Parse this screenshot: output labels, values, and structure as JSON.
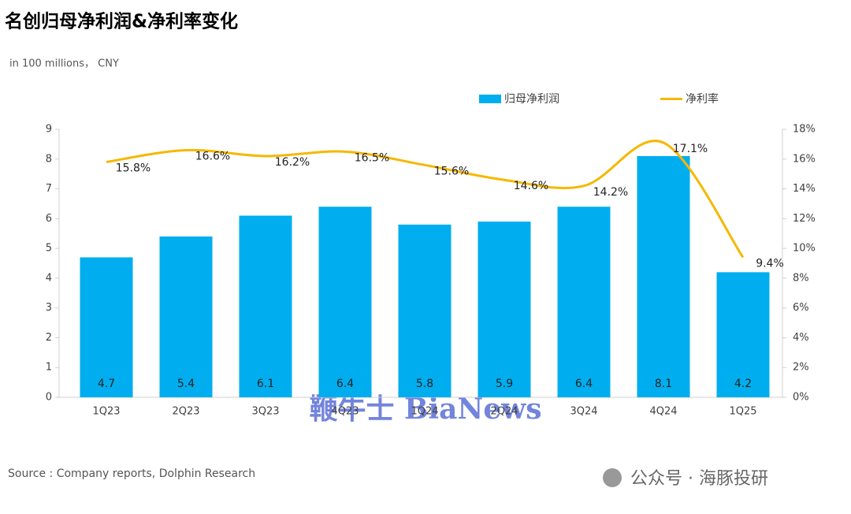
{
  "chart_data": {
    "type": "bar_line",
    "title": "名创归母净利润&净利率变化",
    "subtitle": "in 100 millions， CNY",
    "source": "Source : Company reports, Dolphin Research",
    "watermark": "鞭牛士 BiaNews",
    "footer": "公众号 · 海豚投研",
    "categories": [
      "1Q23",
      "2Q23",
      "3Q23",
      "4Q23",
      "1Q24",
      "2Q24",
      "3Q24",
      "4Q24",
      "1Q25"
    ],
    "series": [
      {
        "name": "归母净利润",
        "type": "bar",
        "color": "#00aeef",
        "values": [
          4.7,
          5.4,
          6.1,
          6.4,
          5.8,
          5.9,
          6.4,
          8.1,
          4.2
        ]
      },
      {
        "name": "净利率",
        "type": "line",
        "axis": "y2",
        "color": "#f5b800",
        "values": [
          15.8,
          16.6,
          16.2,
          16.5,
          15.6,
          14.6,
          14.2,
          17.1,
          9.4
        ],
        "value_labels": [
          "15.8%",
          "16.6%",
          "16.2%",
          "16.5%",
          "15.6%",
          "14.6%",
          "14.2%",
          "17.1%",
          "9.4%"
        ]
      }
    ],
    "ylim": [
      0,
      9
    ],
    "yticks": [
      0,
      1,
      2,
      3,
      4,
      5,
      6,
      7,
      8,
      9
    ],
    "y2lim": [
      0,
      18
    ],
    "y2ticks": [
      {
        "value": 0,
        "label": "0%"
      },
      {
        "value": 2,
        "label": "2%"
      },
      {
        "value": 4,
        "label": "4%"
      },
      {
        "value": 6,
        "label": "6%"
      },
      {
        "value": 8,
        "label": "8%"
      },
      {
        "value": 10,
        "label": "10%"
      },
      {
        "value": 12,
        "label": "12%"
      },
      {
        "value": 14,
        "label": "14%"
      },
      {
        "value": 16,
        "label": "16%"
      },
      {
        "value": 18,
        "label": "18%"
      }
    ],
    "legend": "top-right",
    "grid": false
  }
}
